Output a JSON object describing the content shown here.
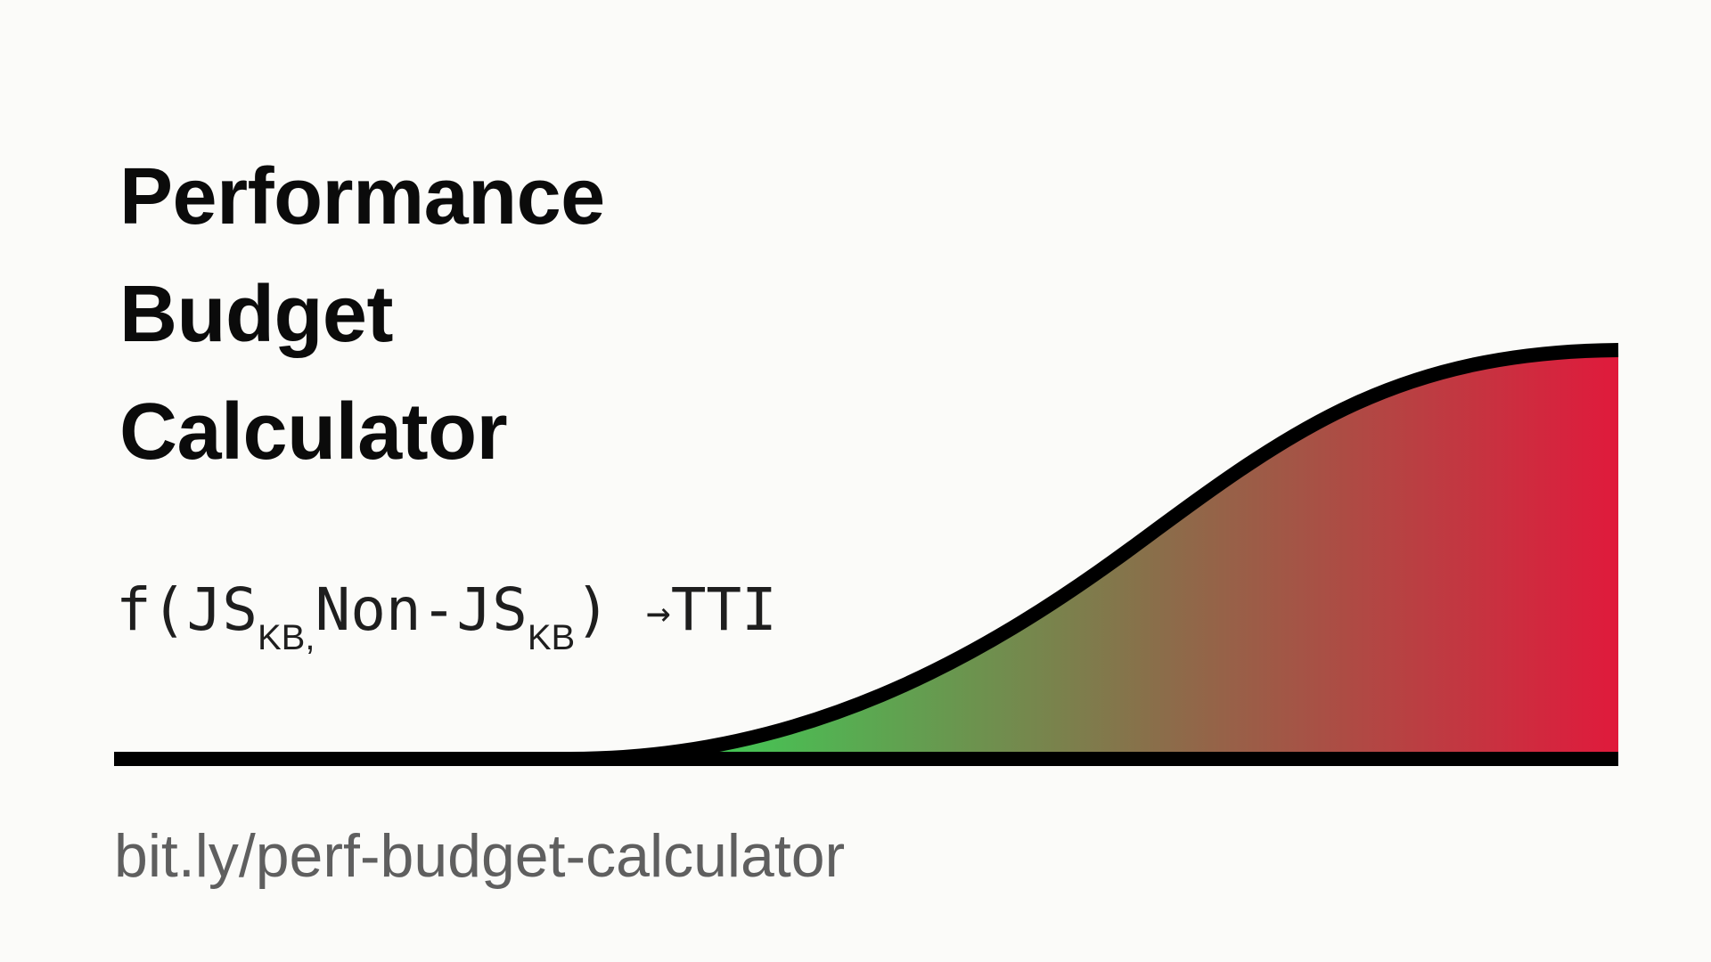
{
  "slide": {
    "title_lines": [
      "Performance",
      "Budget",
      "Calculator"
    ],
    "formula": {
      "func": "f(",
      "arg1": "JS",
      "arg1_sub": "KB,",
      "arg2": "Non-JS",
      "arg2_sub": "KB",
      "close": ")",
      "arrow": "→",
      "result": "TTI"
    },
    "link_text": "bit.ly/perf-budget-calculator"
  },
  "colors": {
    "background": "#fbfbf9",
    "title": "#0b0b0b",
    "line": "#000000",
    "gradient_start": "#3fcb55",
    "gradient_mid": "#8a6e4a",
    "gradient_end": "#e01a3c",
    "link": "#5f5f5f"
  }
}
